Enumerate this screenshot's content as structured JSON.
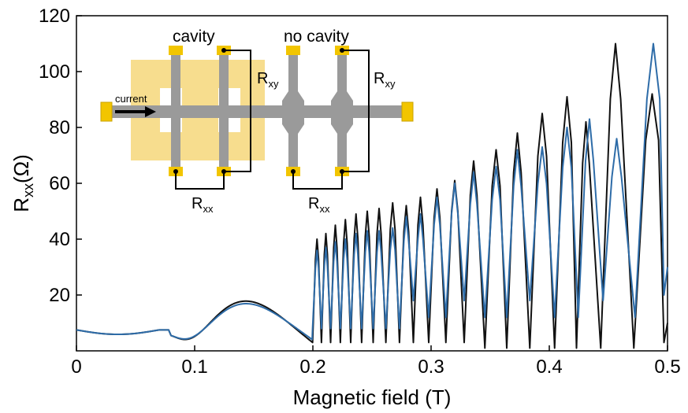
{
  "chart_data": {
    "type": "line",
    "title": "",
    "xlabel": "Magnetic field (T)",
    "ylabel": {
      "main": "R",
      "sub": "xx",
      "tail": "(Ω)"
    },
    "xlim": [
      0,
      0.5
    ],
    "ylim": [
      0,
      120
    ],
    "x_ticks": [
      "0",
      "0.1",
      "0.2",
      "0.3",
      "0.4",
      "0.5"
    ],
    "y_ticks": [
      "20",
      "40",
      "60",
      "80",
      "100",
      "120"
    ],
    "grid": false,
    "series": [
      {
        "color": "#111111",
        "peaks": [
          {
            "x": 0.2035,
            "y": 40
          },
          {
            "x": 0.211,
            "y": 42
          },
          {
            "x": 0.219,
            "y": 45
          },
          {
            "x": 0.2275,
            "y": 47
          },
          {
            "x": 0.2365,
            "y": 49
          },
          {
            "x": 0.246,
            "y": 50
          },
          {
            "x": 0.256,
            "y": 51
          },
          {
            "x": 0.2675,
            "y": 53
          },
          {
            "x": 0.279,
            "y": 52
          },
          {
            "x": 0.291,
            "y": 55
          },
          {
            "x": 0.305,
            "y": 58
          },
          {
            "x": 0.32,
            "y": 61
          },
          {
            "x": 0.336,
            "y": 68
          },
          {
            "x": 0.355,
            "y": 72
          },
          {
            "x": 0.373,
            "y": 78
          },
          {
            "x": 0.394,
            "y": 85
          },
          {
            "x": 0.415,
            "y": 91
          },
          {
            "x": 0.431,
            "y": 82
          },
          {
            "x": 0.456,
            "y": 110
          },
          {
            "x": 0.487,
            "y": 92
          }
        ]
      },
      {
        "color": "#2e6ca8",
        "peaks": [
          {
            "x": 0.2035,
            "y": 36
          },
          {
            "x": 0.211,
            "y": 37
          },
          {
            "x": 0.219,
            "y": 39
          },
          {
            "x": 0.2275,
            "y": 40
          },
          {
            "x": 0.2365,
            "y": 42
          },
          {
            "x": 0.246,
            "y": 43
          },
          {
            "x": 0.256,
            "y": 43
          },
          {
            "x": 0.2675,
            "y": 44
          },
          {
            "x": 0.279,
            "y": 48
          },
          {
            "x": 0.291,
            "y": 49
          },
          {
            "x": 0.305,
            "y": 55
          },
          {
            "x": 0.32,
            "y": 60
          },
          {
            "x": 0.336,
            "y": 64
          },
          {
            "x": 0.355,
            "y": 66
          },
          {
            "x": 0.373,
            "y": 72
          },
          {
            "x": 0.394,
            "y": 73
          },
          {
            "x": 0.415,
            "y": 80
          },
          {
            "x": 0.434,
            "y": 83
          },
          {
            "x": 0.457,
            "y": 76
          },
          {
            "x": 0.488,
            "y": 110
          }
        ]
      }
    ],
    "inset": {
      "label_cavity": "cavity",
      "label_no_cavity": "no cavity",
      "label_current": "current",
      "rxy": {
        "main": "R",
        "sub": "xy"
      },
      "rxx": {
        "main": "R",
        "sub": "xx"
      },
      "colors": {
        "bar": "#9a9a9a",
        "contact": "#f2c500",
        "cavity": "#f6d77a",
        "wire": "#000000"
      }
    }
  }
}
